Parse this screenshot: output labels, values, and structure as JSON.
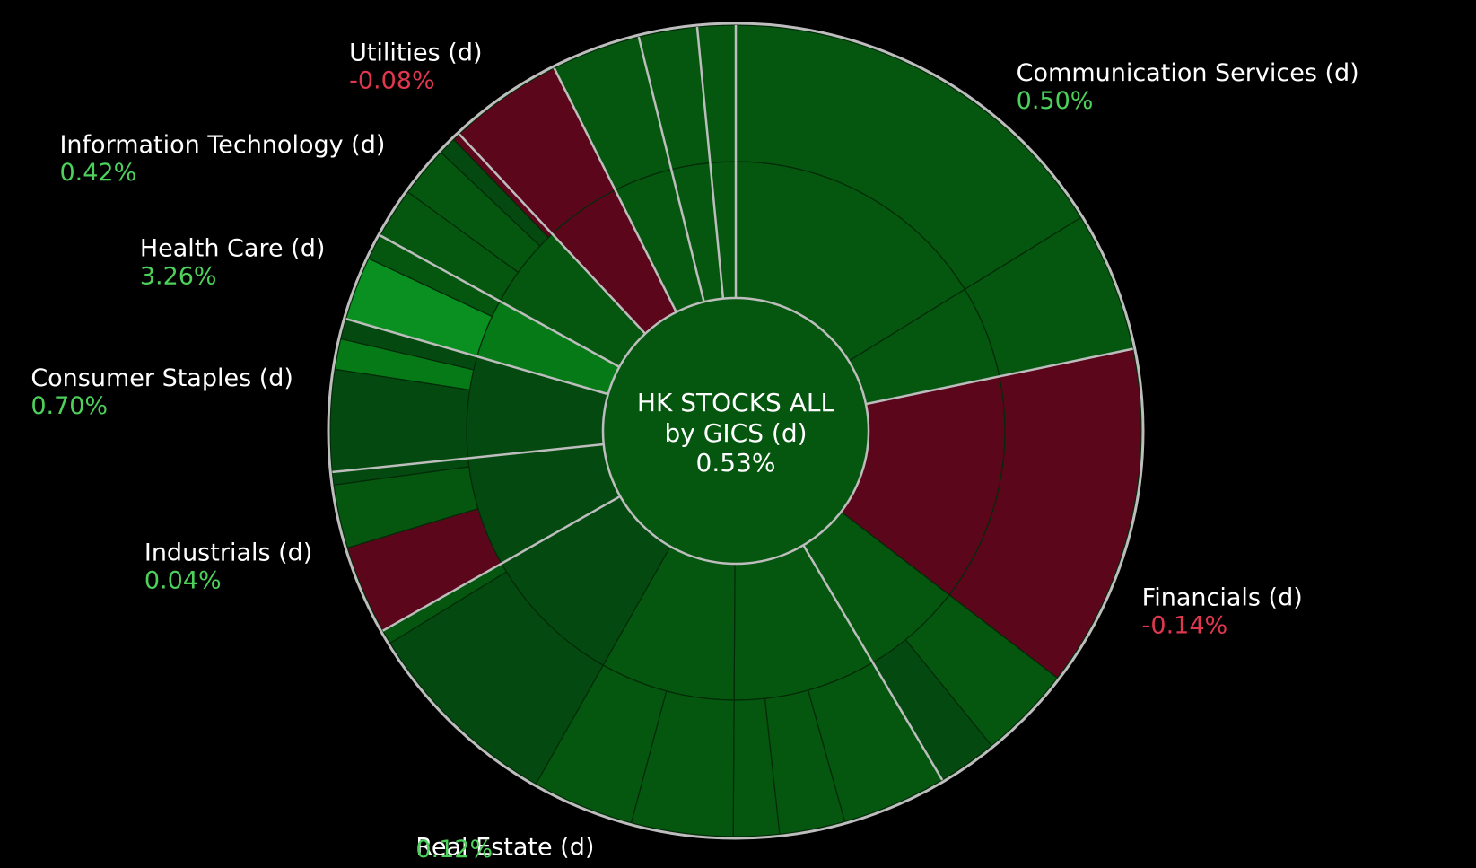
{
  "chart_data": {
    "type": "sunburst",
    "center": {
      "line1": "HK STOCKS ALL",
      "line2": "by GICS (d)",
      "value": "0.53%"
    },
    "colors": {
      "background": "#000000",
      "positive_dark": "#044a10",
      "positive_mid": "#05560f",
      "positive_bright": "#077a18",
      "positive_brightest": "#0a9020",
      "negative": "#5c061c",
      "separator": "#bdbdbd",
      "positive_text": "#4cd15a",
      "negative_text": "#e0374f"
    },
    "sectors": [
      {
        "name": "Communication Services (d)",
        "value": "0.50%",
        "change": 0.5,
        "weight": 21.5,
        "color": "#05560f",
        "industries": [
          {
            "weight": 16.0,
            "color": "#05560f",
            "subs": [
              {
                "weight": 15.5,
                "color": "#05560f"
              }
            ]
          },
          {
            "weight": 5.5,
            "color": "#05560f",
            "subs": [
              {
                "weight": 6.0,
                "color": "#05560f"
              }
            ]
          }
        ]
      },
      {
        "name": "Financials (d)",
        "value": "-0.14%",
        "change": -0.14,
        "weight": 19.5,
        "color": "#5c061c",
        "industries": [
          {
            "weight": 13.5,
            "color": "#5c061c",
            "subs": [
              {
                "weight": 10.5,
                "color": "#5c061c"
              }
            ]
          },
          {
            "weight": 6.0,
            "color": "#05560f",
            "subs": [
              {
                "weight": 5.5,
                "color": "#05560f"
              },
              {
                "weight": 3.5,
                "color": "#044a10"
              }
            ]
          }
        ]
      },
      {
        "name": "Real Estate (d)",
        "value": "0.12%",
        "change": 0.12,
        "weight": 25.0,
        "color": "#05560f",
        "industries": [
          {
            "weight": 8.5,
            "color": "#05560f",
            "subs": [
              {
                "weight": 8.0,
                "color": "#05560f"
              },
              {
                "weight": 5.0,
                "color": "#05560f"
              },
              {
                "weight": 3.5,
                "color": "#05560f"
              }
            ]
          },
          {
            "weight": 8.0,
            "color": "#05560f",
            "subs": [
              {
                "weight": 2.5,
                "color": "#05560f"
              },
              {
                "weight": 2.5,
                "color": "#05560f"
              }
            ]
          },
          {
            "weight": 8.5,
            "color": "#044a10",
            "subs": [
              {
                "weight": 8.5,
                "color": "#044a10"
              },
              {
                "weight": 0.6,
                "color": "#05560f"
              }
            ]
          }
        ]
      },
      {
        "name": "Industrials (d)",
        "value": "0.04%",
        "change": 0.04,
        "weight": 6.5,
        "color": "#044a10",
        "industries": [
          {
            "weight": 6.5,
            "color": "#044a10",
            "subs": [
              {
                "weight": 3.5,
                "color": "#5c061c"
              },
              {
                "weight": 2.5,
                "color": "#05560f"
              },
              {
                "weight": 0.5,
                "color": "#044a10"
              }
            ]
          }
        ]
      },
      {
        "name": "Consumer Staples (d)",
        "value": "0.70%",
        "change": 0.7,
        "weight": 6.0,
        "color": "#044a10",
        "industries": [
          {
            "weight": 6.0,
            "color": "#044a10",
            "subs": [
              {
                "weight": 4.0,
                "color": "#044a10"
              },
              {
                "weight": 1.2,
                "color": "#077a18"
              },
              {
                "weight": 0.8,
                "color": "#044a10"
              }
            ]
          }
        ]
      },
      {
        "name": "Health Care (d)",
        "value": "3.26%",
        "change": 3.26,
        "weight": 3.5,
        "color": "#077a18",
        "industries": [
          {
            "weight": 3.5,
            "color": "#077a18",
            "subs": [
              {
                "weight": 2.5,
                "color": "#0a9020"
              },
              {
                "weight": 1.0,
                "color": "#05560f"
              }
            ]
          }
        ]
      },
      {
        "name": "Information Technology (d)",
        "value": "0.42%",
        "change": 0.42,
        "weight": 5.0,
        "color": "#05560f",
        "industries": [
          {
            "weight": 5.0,
            "color": "#05560f",
            "subs": [
              {
                "weight": 2.0,
                "color": "#05560f"
              },
              {
                "weight": 2.0,
                "color": "#05560f"
              },
              {
                "weight": 0.7,
                "color": "#044a10"
              },
              {
                "weight": 0.3,
                "color": "#5c061c"
              }
            ]
          }
        ]
      },
      {
        "name": "Utilities (d)",
        "value": "-0.08%",
        "change": -0.08,
        "weight": 4.5,
        "color": "#5c061c",
        "industries": [
          {
            "weight": 4.5,
            "color": "#5c061c",
            "subs": [
              {
                "weight": 4.5,
                "color": "#5c061c"
              }
            ]
          }
        ]
      },
      {
        "name": "",
        "value": "",
        "change": null,
        "weight": 3.5,
        "color": "#05560f",
        "industries": [
          {
            "weight": 3.5,
            "color": "#05560f",
            "subs": [
              {
                "weight": 3.5,
                "color": "#05560f"
              }
            ]
          }
        ]
      },
      {
        "name": "",
        "value": "",
        "change": null,
        "weight": 2.3,
        "color": "#05560f",
        "industries": [
          {
            "weight": 2.3,
            "color": "#05560f",
            "subs": [
              {
                "weight": 2.3,
                "color": "#05560f"
              }
            ]
          }
        ]
      },
      {
        "name": "",
        "value": "",
        "change": null,
        "weight": 1.5,
        "color": "#05560f",
        "industries": [
          {
            "weight": 1.5,
            "color": "#05560f",
            "subs": [
              {
                "weight": 1.5,
                "color": "#05560f"
              }
            ]
          }
        ]
      }
    ]
  }
}
